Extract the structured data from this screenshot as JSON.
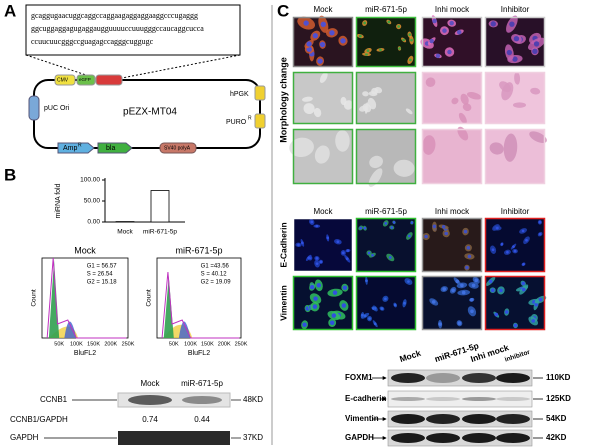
{
  "panel_a": {
    "label": "A",
    "sequence": [
      "gcaggugaacuggcaggccaggaagaggaggaaggcccugaggg",
      "ggcuggaggagugaggaugguuuuccuuugggccaucaggcucca",
      "ccuucuucgggccguagagccagggcuggugc"
    ],
    "plasmid": {
      "name": "pEZX-MT04",
      "cmv": "CMV",
      "egfp": "eGFP",
      "hpgk": "hPGK",
      "puro": "PURO",
      "puc": "pUC Ori",
      "amp": "Amp",
      "bla": "bla",
      "polya": "SV40 polyA",
      "superscript": "R"
    }
  },
  "panel_b": {
    "label": "B",
    "bar_chart": {
      "type": "bar",
      "y_label": "miRNA fold",
      "categories": [
        "Mock",
        "miR-671-5p"
      ],
      "values": [
        1,
        75
      ],
      "ylim": [
        0,
        100
      ],
      "yticks": [
        {
          "value": 0,
          "label": "0.00"
        },
        {
          "value": 50,
          "label": "50.00"
        },
        {
          "value": 100,
          "label": "100.00"
        }
      ]
    },
    "flow": [
      {
        "title": "Mock",
        "stats": [
          "G1 = 56.57",
          "S = 26.54",
          "G2 = 15.18"
        ]
      },
      {
        "title": "miR-671-5p",
        "stats": [
          "G1 =43.56",
          "S = 40.12",
          "G2 = 19.09"
        ]
      }
    ],
    "flow_y_label": "Count",
    "flow_x_label": "BluFL2",
    "flow_x_ticks": [
      "50K",
      "100K",
      "150K",
      "200K",
      "250K"
    ],
    "western": {
      "columns": [
        "Mock",
        "miR-671-5p"
      ],
      "target": "CCNB1",
      "target_size": "48KD",
      "ratio_label": "CCNB1/GAPDH",
      "ratios": [
        0.74,
        0.44
      ],
      "control": "GAPDH",
      "control_size": "37KD"
    }
  },
  "panel_c": {
    "label": "C",
    "morphology": {
      "columns": [
        "Mock",
        "miR-671-5p",
        "Inhi mock",
        "Inhibitor"
      ],
      "row_label": "Morphology change"
    },
    "staining": {
      "columns": [
        "Mock",
        "miR-671-5p",
        "Inhi mock",
        "Inhibitor"
      ],
      "rows": [
        "E-Cadherin",
        "Vimentin"
      ]
    },
    "western": {
      "columns": [
        "Mock",
        "miR-671-5p",
        "Inhi mock",
        "inhibitor"
      ],
      "rows": [
        {
          "name": "FOXM1",
          "size": "110KD"
        },
        {
          "name": "E-cadherin",
          "size": "125KD"
        },
        {
          "name": "Vimentin",
          "size": "54KD"
        },
        {
          "name": "GAPDH",
          "size": "42KD"
        }
      ]
    }
  }
}
